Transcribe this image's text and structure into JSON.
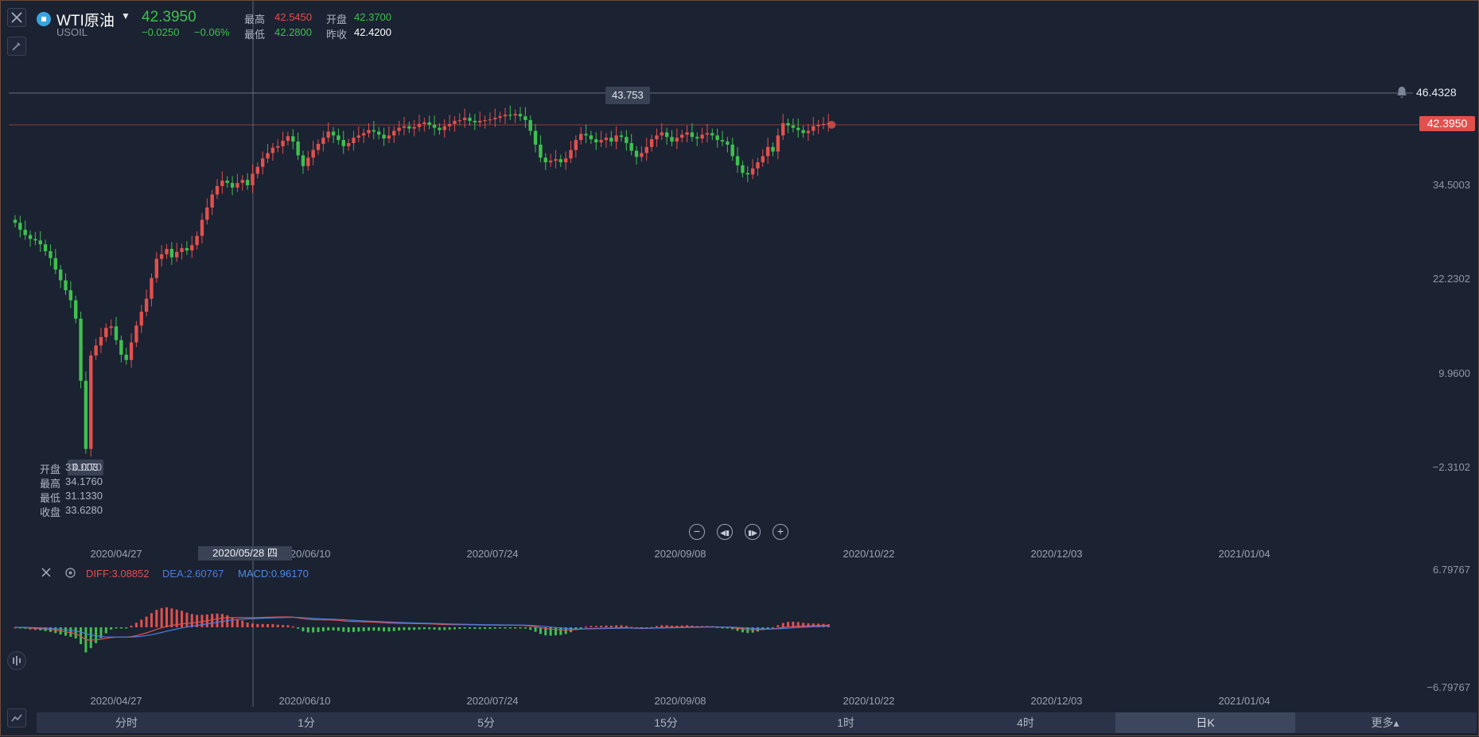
{
  "symbol": {
    "name": "WTI原油",
    "code": "USOIL",
    "price": "42.3950",
    "change": "−0.0250",
    "change_pct": "−0.06%",
    "high_label": "最高",
    "high": "42.5450",
    "open_label": "开盘",
    "open": "42.3700",
    "low_label": "最低",
    "low": "42.2800",
    "prev_label": "昨收",
    "prev": "42.4200"
  },
  "hover_ohlc": {
    "open_label": "开盘",
    "open": "33.1170",
    "high_label": "最高",
    "high": "34.1760",
    "low_label": "最低",
    "low": "31.1330",
    "close_label": "收盘",
    "close": "33.6280"
  },
  "markers": {
    "max_label": "43.753",
    "min_label": "0.003",
    "crosshair_price": "46.4328",
    "last_price": "42.3950",
    "crosshair_date": "2020/05/28 四"
  },
  "y_axis": [
    "34.5003",
    "22.2302",
    "9.9600",
    "−2.3102"
  ],
  "x_axis": [
    "2020/04/27",
    "2020/06/10",
    "2020/07/24",
    "2020/09/08",
    "2020/10/22",
    "2020/12/03",
    "2021/01/04"
  ],
  "macd": {
    "diff": "DIFF:3.08852",
    "dea": "DEA:2.60767",
    "macd": "MACD:0.96170",
    "y_top": "6.79767",
    "y_bottom": "−6.79767"
  },
  "timeframes": [
    "分时",
    "1分",
    "5分",
    "15分",
    "1时",
    "4时",
    "日K",
    "更多▴"
  ],
  "active_timeframe": "日K",
  "colors": {
    "up": "#e2504d",
    "down": "#3fc04f",
    "bg": "#1b2232",
    "diff": "#e2504d",
    "dea": "#4a7de0"
  },
  "chart_data": {
    "type": "candlestick",
    "series": [
      {
        "name": "WTI原油",
        "ohlc_close": [
          29.5,
          28.6,
          27.9,
          27.4,
          27.2,
          26.7,
          25.8,
          24.9,
          23.4,
          22.0,
          20.7,
          19.4,
          17.0,
          8.9,
          0.003,
          12.2,
          13.5,
          14.6,
          15.8,
          16.0,
          14.2,
          12.3,
          11.6,
          13.9,
          16.1,
          17.9,
          19.6,
          22.3,
          24.8,
          25.4,
          26.1,
          25.0,
          25.7,
          26.2,
          25.9,
          26.6,
          27.8,
          29.9,
          31.5,
          33.2,
          34.3,
          35.0,
          34.7,
          34.1,
          34.7,
          35.1,
          34.4,
          35.9,
          36.8,
          37.9,
          38.6,
          39.3,
          39.5,
          40.2,
          40.8,
          40.1,
          38.3,
          36.9,
          38.0,
          39.0,
          39.8,
          40.6,
          41.4,
          40.9,
          40.3,
          39.5,
          39.9,
          40.6,
          40.9,
          41.2,
          41.6,
          41.4,
          41.0,
          40.5,
          40.9,
          41.5,
          41.9,
          42.1,
          41.8,
          42.0,
          42.4,
          42.6,
          42.3,
          41.9,
          41.6,
          42.1,
          42.4,
          42.8,
          42.9,
          43.2,
          42.8,
          42.6,
          42.8,
          42.9,
          43.0,
          43.2,
          43.4,
          43.6,
          43.5,
          43.7,
          43.4,
          42.9,
          41.5,
          39.7,
          38.0,
          37.4,
          37.6,
          37.8,
          37.4,
          37.9,
          39.0,
          40.3,
          41.1,
          40.9,
          40.4,
          40.0,
          40.3,
          40.6,
          40.1,
          40.9,
          40.7,
          39.9,
          38.9,
          38.1,
          38.6,
          39.4,
          40.4,
          40.9,
          41.3,
          40.7,
          40.1,
          40.6,
          41.0,
          41.3,
          40.7,
          40.5,
          41.0,
          41.2,
          40.9,
          40.3,
          40.1,
          39.7,
          38.2,
          37.0,
          36.0,
          35.8,
          36.6,
          37.4,
          38.2,
          39.4,
          38.8,
          40.9,
          42.5,
          42.2,
          41.9,
          41.6,
          41.2,
          41.5,
          42.1,
          42.3,
          42.4,
          42.5
        ]
      }
    ],
    "x_ticks": [
      "2020/04/27",
      "2020/06/10",
      "2020/07/24",
      "2020/09/08",
      "2020/10/22",
      "2020/12/03",
      "2021/01/04"
    ],
    "y_ticks": [
      46.4328,
      34.5003,
      22.2302,
      9.96,
      -2.3102
    ],
    "max": 43.753,
    "min": 0.003
  }
}
